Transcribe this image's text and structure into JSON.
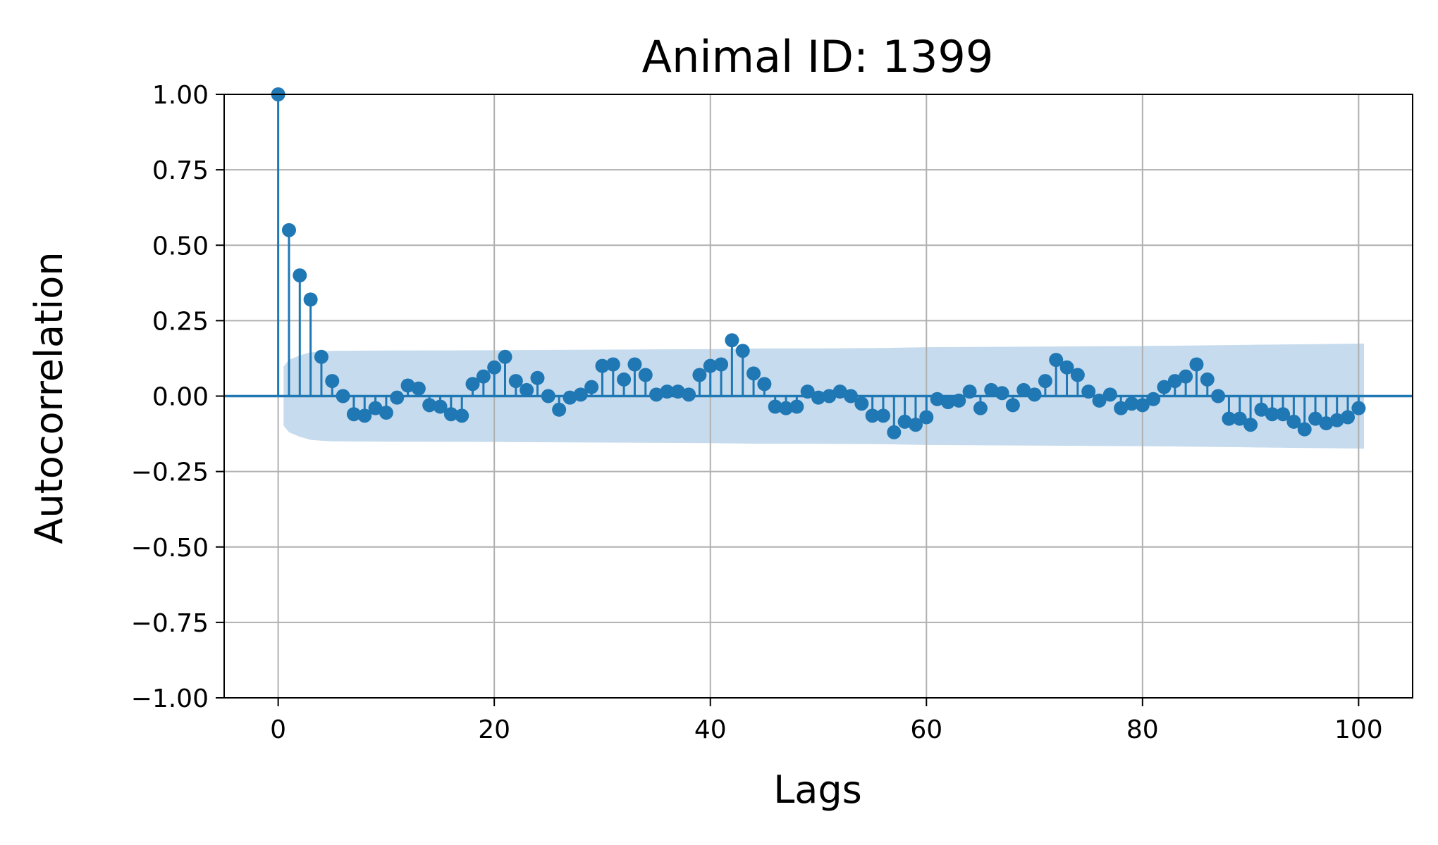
{
  "chart_data": {
    "type": "stem",
    "title": "Animal ID: 1399",
    "xlabel": "Lags",
    "ylabel": "Autocorrelation",
    "xlim": [
      -5,
      105
    ],
    "ylim": [
      -1.0,
      1.0
    ],
    "xticks": [
      0,
      20,
      40,
      60,
      80,
      100
    ],
    "xtick_labels": [
      "0",
      "20",
      "40",
      "60",
      "80",
      "100"
    ],
    "yticks": [
      1.0,
      0.75,
      0.5,
      0.25,
      0.0,
      -0.25,
      -0.5,
      -0.75,
      -1.0
    ],
    "ytick_labels": [
      "1.00",
      "0.75",
      "0.50",
      "0.25",
      "0.00",
      "−0.25",
      "−0.50",
      "−0.75",
      "−1.00"
    ],
    "grid": true,
    "color": "#1f77b4",
    "band_color": "#c6dbed",
    "lags": [
      0,
      1,
      2,
      3,
      4,
      5,
      6,
      7,
      8,
      9,
      10,
      11,
      12,
      13,
      14,
      15,
      16,
      17,
      18,
      19,
      20,
      21,
      22,
      23,
      24,
      25,
      26,
      27,
      28,
      29,
      30,
      31,
      32,
      33,
      34,
      35,
      36,
      37,
      38,
      39,
      40,
      41,
      42,
      43,
      44,
      45,
      46,
      47,
      48,
      49,
      50,
      51,
      52,
      53,
      54,
      55,
      56,
      57,
      58,
      59,
      60,
      61,
      62,
      63,
      64,
      65,
      66,
      67,
      68,
      69,
      70,
      71,
      72,
      73,
      74,
      75,
      76,
      77,
      78,
      79,
      80,
      81,
      82,
      83,
      84,
      85,
      86,
      87,
      88,
      89,
      90,
      91,
      92,
      93,
      94,
      95,
      96,
      97,
      98,
      99,
      100
    ],
    "values": [
      1.0,
      0.55,
      0.4,
      0.32,
      0.13,
      0.05,
      0.0,
      -0.06,
      -0.065,
      -0.04,
      -0.055,
      -0.005,
      0.035,
      0.025,
      -0.03,
      -0.035,
      -0.06,
      -0.065,
      0.04,
      0.065,
      0.095,
      0.13,
      0.05,
      0.02,
      0.06,
      0.0,
      -0.045,
      -0.005,
      0.005,
      0.03,
      0.1,
      0.105,
      0.055,
      0.105,
      0.07,
      0.005,
      0.015,
      0.015,
      0.005,
      0.07,
      0.1,
      0.105,
      0.185,
      0.15,
      0.075,
      0.04,
      -0.035,
      -0.04,
      -0.035,
      0.015,
      -0.005,
      0.0,
      0.015,
      0.0,
      -0.025,
      -0.065,
      -0.065,
      -0.12,
      -0.085,
      -0.095,
      -0.07,
      -0.01,
      -0.02,
      -0.015,
      0.015,
      -0.04,
      0.02,
      0.01,
      -0.03,
      0.02,
      0.005,
      0.05,
      0.12,
      0.095,
      0.07,
      0.015,
      -0.015,
      0.005,
      -0.04,
      -0.025,
      -0.03,
      -0.01,
      0.03,
      0.05,
      0.065,
      0.105,
      0.055,
      0.0,
      -0.075,
      -0.075,
      -0.095,
      -0.045,
      -0.06,
      -0.06,
      -0.085,
      -0.11,
      -0.075,
      -0.09,
      -0.08,
      -0.07,
      -0.04
    ],
    "confidence_band": {
      "x": [
        0.5,
        1,
        2,
        3,
        4,
        5,
        10,
        20,
        30,
        40,
        45,
        50,
        55,
        60,
        70,
        80,
        90,
        100.5
      ],
      "upper": [
        0.098,
        0.12,
        0.135,
        0.145,
        0.148,
        0.15,
        0.151,
        0.152,
        0.154,
        0.156,
        0.158,
        0.158,
        0.159,
        0.162,
        0.164,
        0.166,
        0.17,
        0.174
      ],
      "lower": [
        -0.098,
        -0.12,
        -0.135,
        -0.145,
        -0.148,
        -0.15,
        -0.151,
        -0.152,
        -0.154,
        -0.156,
        -0.158,
        -0.158,
        -0.159,
        -0.162,
        -0.164,
        -0.166,
        -0.17,
        -0.174
      ]
    }
  }
}
